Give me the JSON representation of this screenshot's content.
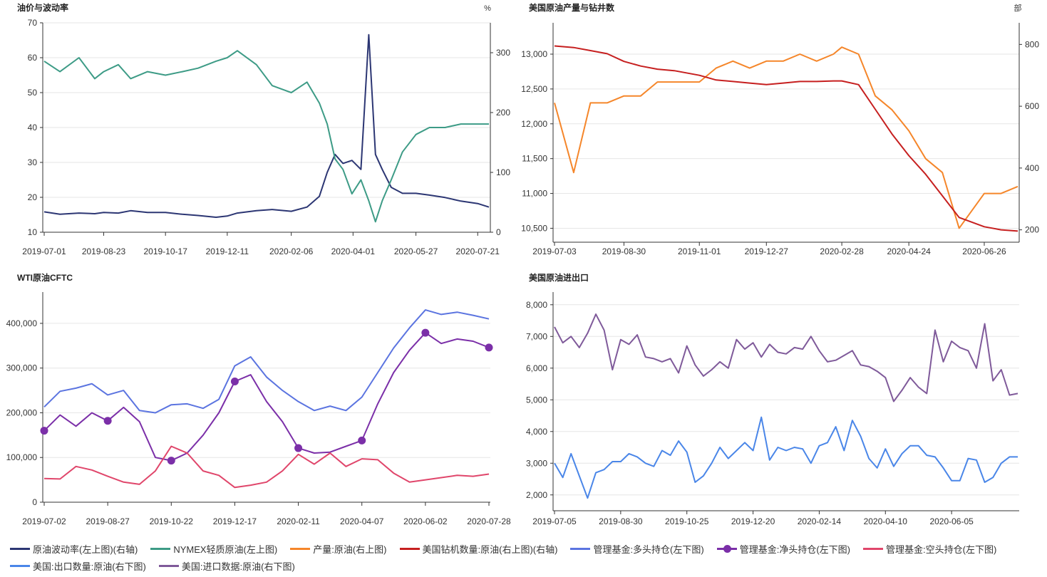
{
  "chart_data": [
    {
      "type": "line",
      "title": "油价与波动率",
      "y_left_ticks": [
        "10",
        "20",
        "30",
        "40",
        "50",
        "60",
        "70"
      ],
      "ylim_left": [
        10,
        70
      ],
      "right_unit": "%",
      "y_right_ticks": [
        "0",
        "100",
        "200",
        "300"
      ],
      "ylim_right": [
        0,
        350
      ],
      "x_ticks": [
        "2019-07-01",
        "2019-08-23",
        "2019-10-17",
        "2019-12-11",
        "2020-02-06",
        "2020-04-01",
        "2020-05-27",
        "2020-07-21"
      ],
      "x": [
        "2019-07-01",
        "2019-07-15",
        "2019-08-01",
        "2019-08-15",
        "2019-08-23",
        "2019-09-05",
        "2019-09-16",
        "2019-10-01",
        "2019-10-17",
        "2019-11-01",
        "2019-11-15",
        "2019-12-01",
        "2019-12-11",
        "2019-12-20",
        "2020-01-06",
        "2020-01-20",
        "2020-02-06",
        "2020-02-20",
        "2020-03-02",
        "2020-03-09",
        "2020-03-16",
        "2020-03-23",
        "2020-03-31",
        "2020-04-08",
        "2020-04-15",
        "2020-04-21",
        "2020-04-27",
        "2020-05-05",
        "2020-05-15",
        "2020-05-27",
        "2020-06-08",
        "2020-06-22",
        "2020-07-06",
        "2020-07-21",
        "2020-07-31"
      ],
      "series": [
        {
          "name": "原油波动率(左上图)(右轴)",
          "axis": "right",
          "color": "#2c3673",
          "values": [
            34,
            30,
            32,
            31,
            33,
            32,
            36,
            33,
            33,
            30,
            28,
            25,
            27,
            32,
            36,
            38,
            35,
            42,
            60,
            100,
            130,
            115,
            120,
            105,
            330,
            130,
            105,
            75,
            65,
            65,
            62,
            58,
            52,
            48,
            42
          ]
        },
        {
          "name": "NYMEX轻质原油(左上图)",
          "axis": "left",
          "color": "#3d9b86",
          "values": [
            59,
            56,
            60,
            54,
            56,
            58,
            54,
            56,
            55,
            56,
            57,
            59,
            60,
            62,
            58,
            52,
            50,
            53,
            47,
            41,
            31,
            28,
            21,
            25,
            19,
            13,
            19,
            25,
            33,
            38,
            40,
            40,
            41,
            41,
            41
          ]
        }
      ]
    },
    {
      "type": "line",
      "title": "美国原油产量与钻井数",
      "right_unit": "部",
      "y_left_ticks": [
        "10,500",
        "11,000",
        "11,500",
        "12,000",
        "12,500",
        "13,000"
      ],
      "ylim_left": [
        10300,
        13450
      ],
      "y_right_ticks": [
        "200",
        "400",
        "600",
        "800"
      ],
      "ylim_right": [
        160,
        870
      ],
      "x_ticks": [
        "2019-07-03",
        "2019-08-30",
        "2019-11-01",
        "2019-12-27",
        "2020-02-28",
        "2020-04-24",
        "2020-06-26"
      ],
      "x": [
        "2019-07-03",
        "2019-07-19",
        "2019-08-02",
        "2019-08-16",
        "2019-08-30",
        "2019-09-13",
        "2019-09-27",
        "2019-10-11",
        "2019-11-01",
        "2019-11-15",
        "2019-11-29",
        "2019-12-13",
        "2019-12-27",
        "2020-01-10",
        "2020-01-24",
        "2020-02-07",
        "2020-02-21",
        "2020-02-28",
        "2020-03-13",
        "2020-03-27",
        "2020-04-10",
        "2020-04-24",
        "2020-05-08",
        "2020-05-22",
        "2020-06-05",
        "2020-06-26",
        "2020-07-10",
        "2020-07-24"
      ],
      "series": [
        {
          "name": "产量:原油(右上图)",
          "axis": "left",
          "color": "#f5862a",
          "values": [
            12300,
            11300,
            12300,
            12300,
            12400,
            12400,
            12600,
            12600,
            12600,
            12800,
            12900,
            12800,
            12900,
            12900,
            13000,
            12900,
            13000,
            13100,
            13000,
            12400,
            12200,
            11900,
            11500,
            11300,
            10500,
            11000,
            11000,
            11100
          ]
        },
        {
          "name": "美国钻机数量:原油(右上图)(右轴)",
          "axis": "right",
          "color": "#c61f1f",
          "values": [
            795,
            790,
            780,
            770,
            745,
            730,
            720,
            715,
            700,
            685,
            680,
            675,
            670,
            675,
            680,
            680,
            682,
            682,
            670,
            590,
            510,
            440,
            380,
            310,
            240,
            210,
            200,
            196
          ]
        }
      ]
    },
    {
      "type": "line",
      "title": "WTI原油CFTC",
      "y_left_ticks": [
        "0",
        "100,000",
        "200,000",
        "300,000",
        "400,000"
      ],
      "ylim_left": [
        0,
        470000
      ],
      "x_ticks": [
        "2019-07-02",
        "2019-08-27",
        "2019-10-22",
        "2019-12-17",
        "2020-02-11",
        "2020-04-07",
        "2020-06-02",
        "2020-07-28"
      ],
      "x": [
        "2019-07-02",
        "2019-07-16",
        "2019-07-30",
        "2019-08-13",
        "2019-08-27",
        "2019-09-10",
        "2019-09-24",
        "2019-10-08",
        "2019-10-22",
        "2019-11-05",
        "2019-11-19",
        "2019-12-03",
        "2019-12-17",
        "2019-12-31",
        "2020-01-14",
        "2020-01-28",
        "2020-02-11",
        "2020-02-25",
        "2020-03-10",
        "2020-03-24",
        "2020-04-07",
        "2020-04-21",
        "2020-05-05",
        "2020-05-19",
        "2020-06-02",
        "2020-06-16",
        "2020-06-30",
        "2020-07-14",
        "2020-07-28"
      ],
      "markers": [
        "2019-07-02",
        "2019-08-27",
        "2019-10-22",
        "2019-12-17",
        "2020-02-11",
        "2020-04-07",
        "2020-06-02",
        "2020-07-28"
      ],
      "series": [
        {
          "name": "管理基金:多头持仓(左下图)",
          "color": "#5b74e0",
          "values": [
            213000,
            248000,
            255000,
            265000,
            240000,
            250000,
            205000,
            200000,
            218000,
            220000,
            210000,
            230000,
            305000,
            325000,
            280000,
            250000,
            225000,
            205000,
            215000,
            205000,
            235000,
            290000,
            345000,
            390000,
            430000,
            420000,
            425000,
            418000,
            410000
          ]
        },
        {
          "name": "管理基金:净头持仓(左下图)",
          "color": "#7b2fa8",
          "values": [
            160000,
            195000,
            170000,
            200000,
            182000,
            212000,
            180000,
            100000,
            93000,
            110000,
            150000,
            200000,
            270000,
            285000,
            225000,
            180000,
            121000,
            110000,
            112000,
            125000,
            138000,
            220000,
            290000,
            340000,
            379000,
            355000,
            365000,
            360000,
            346000
          ]
        },
        {
          "name": "管理基金:空头持仓(左下图)",
          "color": "#e0466b",
          "values": [
            53000,
            52000,
            80000,
            72000,
            58000,
            45000,
            40000,
            70000,
            125000,
            110000,
            70000,
            60000,
            33000,
            38000,
            45000,
            70000,
            107000,
            85000,
            110000,
            80000,
            97000,
            95000,
            65000,
            45000,
            50000,
            55000,
            60000,
            58000,
            63000
          ]
        }
      ]
    },
    {
      "type": "line",
      "title": "美国原油进出口",
      "y_left_ticks": [
        "2,000",
        "3,000",
        "4,000",
        "5,000",
        "6,000",
        "7,000",
        "8,000"
      ],
      "ylim_left": [
        1500,
        8400
      ],
      "x_ticks": [
        "2019-07-05",
        "2019-08-30",
        "2019-10-25",
        "2019-12-20",
        "2020-02-14",
        "2020-04-10",
        "2020-06-05"
      ],
      "x": [
        "2019-07-05",
        "2019-07-12",
        "2019-07-19",
        "2019-07-26",
        "2019-08-02",
        "2019-08-09",
        "2019-08-16",
        "2019-08-23",
        "2019-08-30",
        "2019-09-06",
        "2019-09-13",
        "2019-09-20",
        "2019-09-27",
        "2019-10-04",
        "2019-10-11",
        "2019-10-18",
        "2019-10-25",
        "2019-11-01",
        "2019-11-08",
        "2019-11-15",
        "2019-11-22",
        "2019-11-29",
        "2019-12-06",
        "2019-12-13",
        "2019-12-20",
        "2019-12-27",
        "2020-01-03",
        "2020-01-10",
        "2020-01-17",
        "2020-01-24",
        "2020-01-31",
        "2020-02-07",
        "2020-02-14",
        "2020-02-21",
        "2020-02-28",
        "2020-03-06",
        "2020-03-13",
        "2020-03-20",
        "2020-03-27",
        "2020-04-03",
        "2020-04-10",
        "2020-04-17",
        "2020-04-24",
        "2020-05-01",
        "2020-05-08",
        "2020-05-15",
        "2020-05-22",
        "2020-05-29",
        "2020-06-05",
        "2020-06-12",
        "2020-06-19",
        "2020-06-26",
        "2020-07-03",
        "2020-07-10",
        "2020-07-17",
        "2020-07-24",
        "2020-07-31"
      ],
      "series": [
        {
          "name": "美国:出口数量:原油(右下图)",
          "color": "#4a86e8",
          "values": [
            3000,
            2550,
            3300,
            2600,
            1900,
            2700,
            2800,
            3050,
            3050,
            3300,
            3200,
            3000,
            2900,
            3400,
            3250,
            3700,
            3350,
            2400,
            2600,
            3000,
            3500,
            3150,
            3400,
            3650,
            3400,
            4450,
            3100,
            3500,
            3400,
            3500,
            3450,
            3000,
            3550,
            3650,
            4150,
            3400,
            4350,
            3850,
            3150,
            2850,
            3450,
            2900,
            3300,
            3550,
            3550,
            3250,
            3200,
            2850,
            2450,
            2450,
            3150,
            3100,
            2400,
            2550,
            3000,
            3200,
            3200
          ]
        },
        {
          "name": "美国:进口数据:原油(右下图)",
          "color": "#7f5a9a",
          "values": [
            7300,
            6800,
            7000,
            6650,
            7100,
            7700,
            7200,
            5950,
            6900,
            6750,
            7050,
            6350,
            6300,
            6200,
            6300,
            5850,
            6700,
            6100,
            5750,
            5950,
            6200,
            6000,
            6900,
            6600,
            6800,
            6350,
            6750,
            6500,
            6450,
            6650,
            6600,
            7000,
            6550,
            6200,
            6250,
            6400,
            6550,
            6100,
            6050,
            5900,
            5700,
            4950,
            5300,
            5700,
            5400,
            5200,
            7200,
            6200,
            6850,
            6650,
            6550,
            6000,
            7400,
            5600,
            5950,
            5150,
            5200
          ]
        }
      ]
    }
  ],
  "legend": [
    {
      "label": "原油波动率(左上图)(右轴)",
      "color": "#2c3673",
      "marker": false
    },
    {
      "label": "NYMEX轻质原油(左上图)",
      "color": "#3d9b86",
      "marker": false
    },
    {
      "label": "产量:原油(右上图)",
      "color": "#f5862a",
      "marker": false
    },
    {
      "label": "美国钻机数量:原油(右上图)(右轴)",
      "color": "#c61f1f",
      "marker": false
    },
    {
      "label": "管理基金:多头持仓(左下图)",
      "color": "#5b74e0",
      "marker": false
    },
    {
      "label": "管理基金:净头持仓(左下图)",
      "color": "#7b2fa8",
      "marker": true
    },
    {
      "label": "管理基金:空头持仓(左下图)",
      "color": "#e0466b",
      "marker": false
    },
    {
      "label": "美国:出口数量:原油(右下图)",
      "color": "#4a86e8",
      "marker": false
    },
    {
      "label": "美国:进口数据:原油(右下图)",
      "color": "#7f5a9a",
      "marker": false
    }
  ]
}
